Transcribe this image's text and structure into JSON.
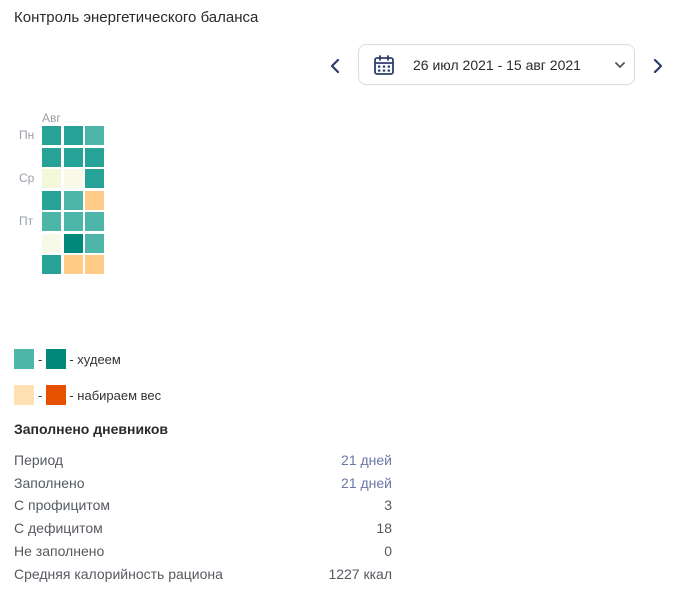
{
  "header": {
    "title": "Контроль энергетического баланса"
  },
  "date_nav": {
    "range": "26 июл 2021 - 15 авг 2021",
    "prev_icon": "chevron-left-icon",
    "next_icon": "chevron-right-icon",
    "calendar_icon": "calendar-icon",
    "dropdown_icon": "chevron-down-icon"
  },
  "heatmap": {
    "month_label": "Авг",
    "day_labels": [
      {
        "row": 0,
        "text": "Пн"
      },
      {
        "row": 2,
        "text": "Ср"
      },
      {
        "row": 4,
        "text": "Пт"
      }
    ],
    "colors": {
      "deficit_light": "#4db6a8",
      "deficit_mid": "#26a396",
      "deficit_dark": "#00897b",
      "neutral_light": "#f4f7da",
      "neutral_pale": "#f8f9e8",
      "surplus_light": "#ffcc88"
    },
    "columns": [
      [
        "deficit_mid",
        "deficit_mid",
        "neutral_light",
        "deficit_mid",
        "deficit_light",
        "neutral_pale",
        "deficit_mid"
      ],
      [
        "deficit_mid",
        "deficit_mid",
        "neutral_pale",
        "deficit_light",
        "deficit_light",
        "deficit_dark",
        "surplus_light"
      ],
      [
        "deficit_light",
        "deficit_mid",
        "deficit_mid",
        "surplus_light",
        "deficit_light",
        "deficit_light",
        "surplus_light"
      ]
    ]
  },
  "legend": {
    "lose": {
      "from": "#4db6a8",
      "to": "#00897b",
      "label": "- худеем"
    },
    "gain": {
      "from": "#ffe0b2",
      "to": "#e65100",
      "label": "- набираем вес"
    },
    "separator": "-"
  },
  "stats": {
    "title": "Заполнено дневников",
    "rows": [
      {
        "label": "Период",
        "value": "21 дней",
        "accent": true
      },
      {
        "label": "Заполнено",
        "value": "21 дней",
        "accent": true
      },
      {
        "label": "С профицитом",
        "value": "3",
        "accent": false
      },
      {
        "label": "С дефицитом",
        "value": "18",
        "accent": false
      },
      {
        "label": "Не заполнено",
        "value": "0",
        "accent": false
      },
      {
        "label": "Средняя калорийность рациона",
        "value": "1227 ккал",
        "accent": false
      }
    ]
  }
}
